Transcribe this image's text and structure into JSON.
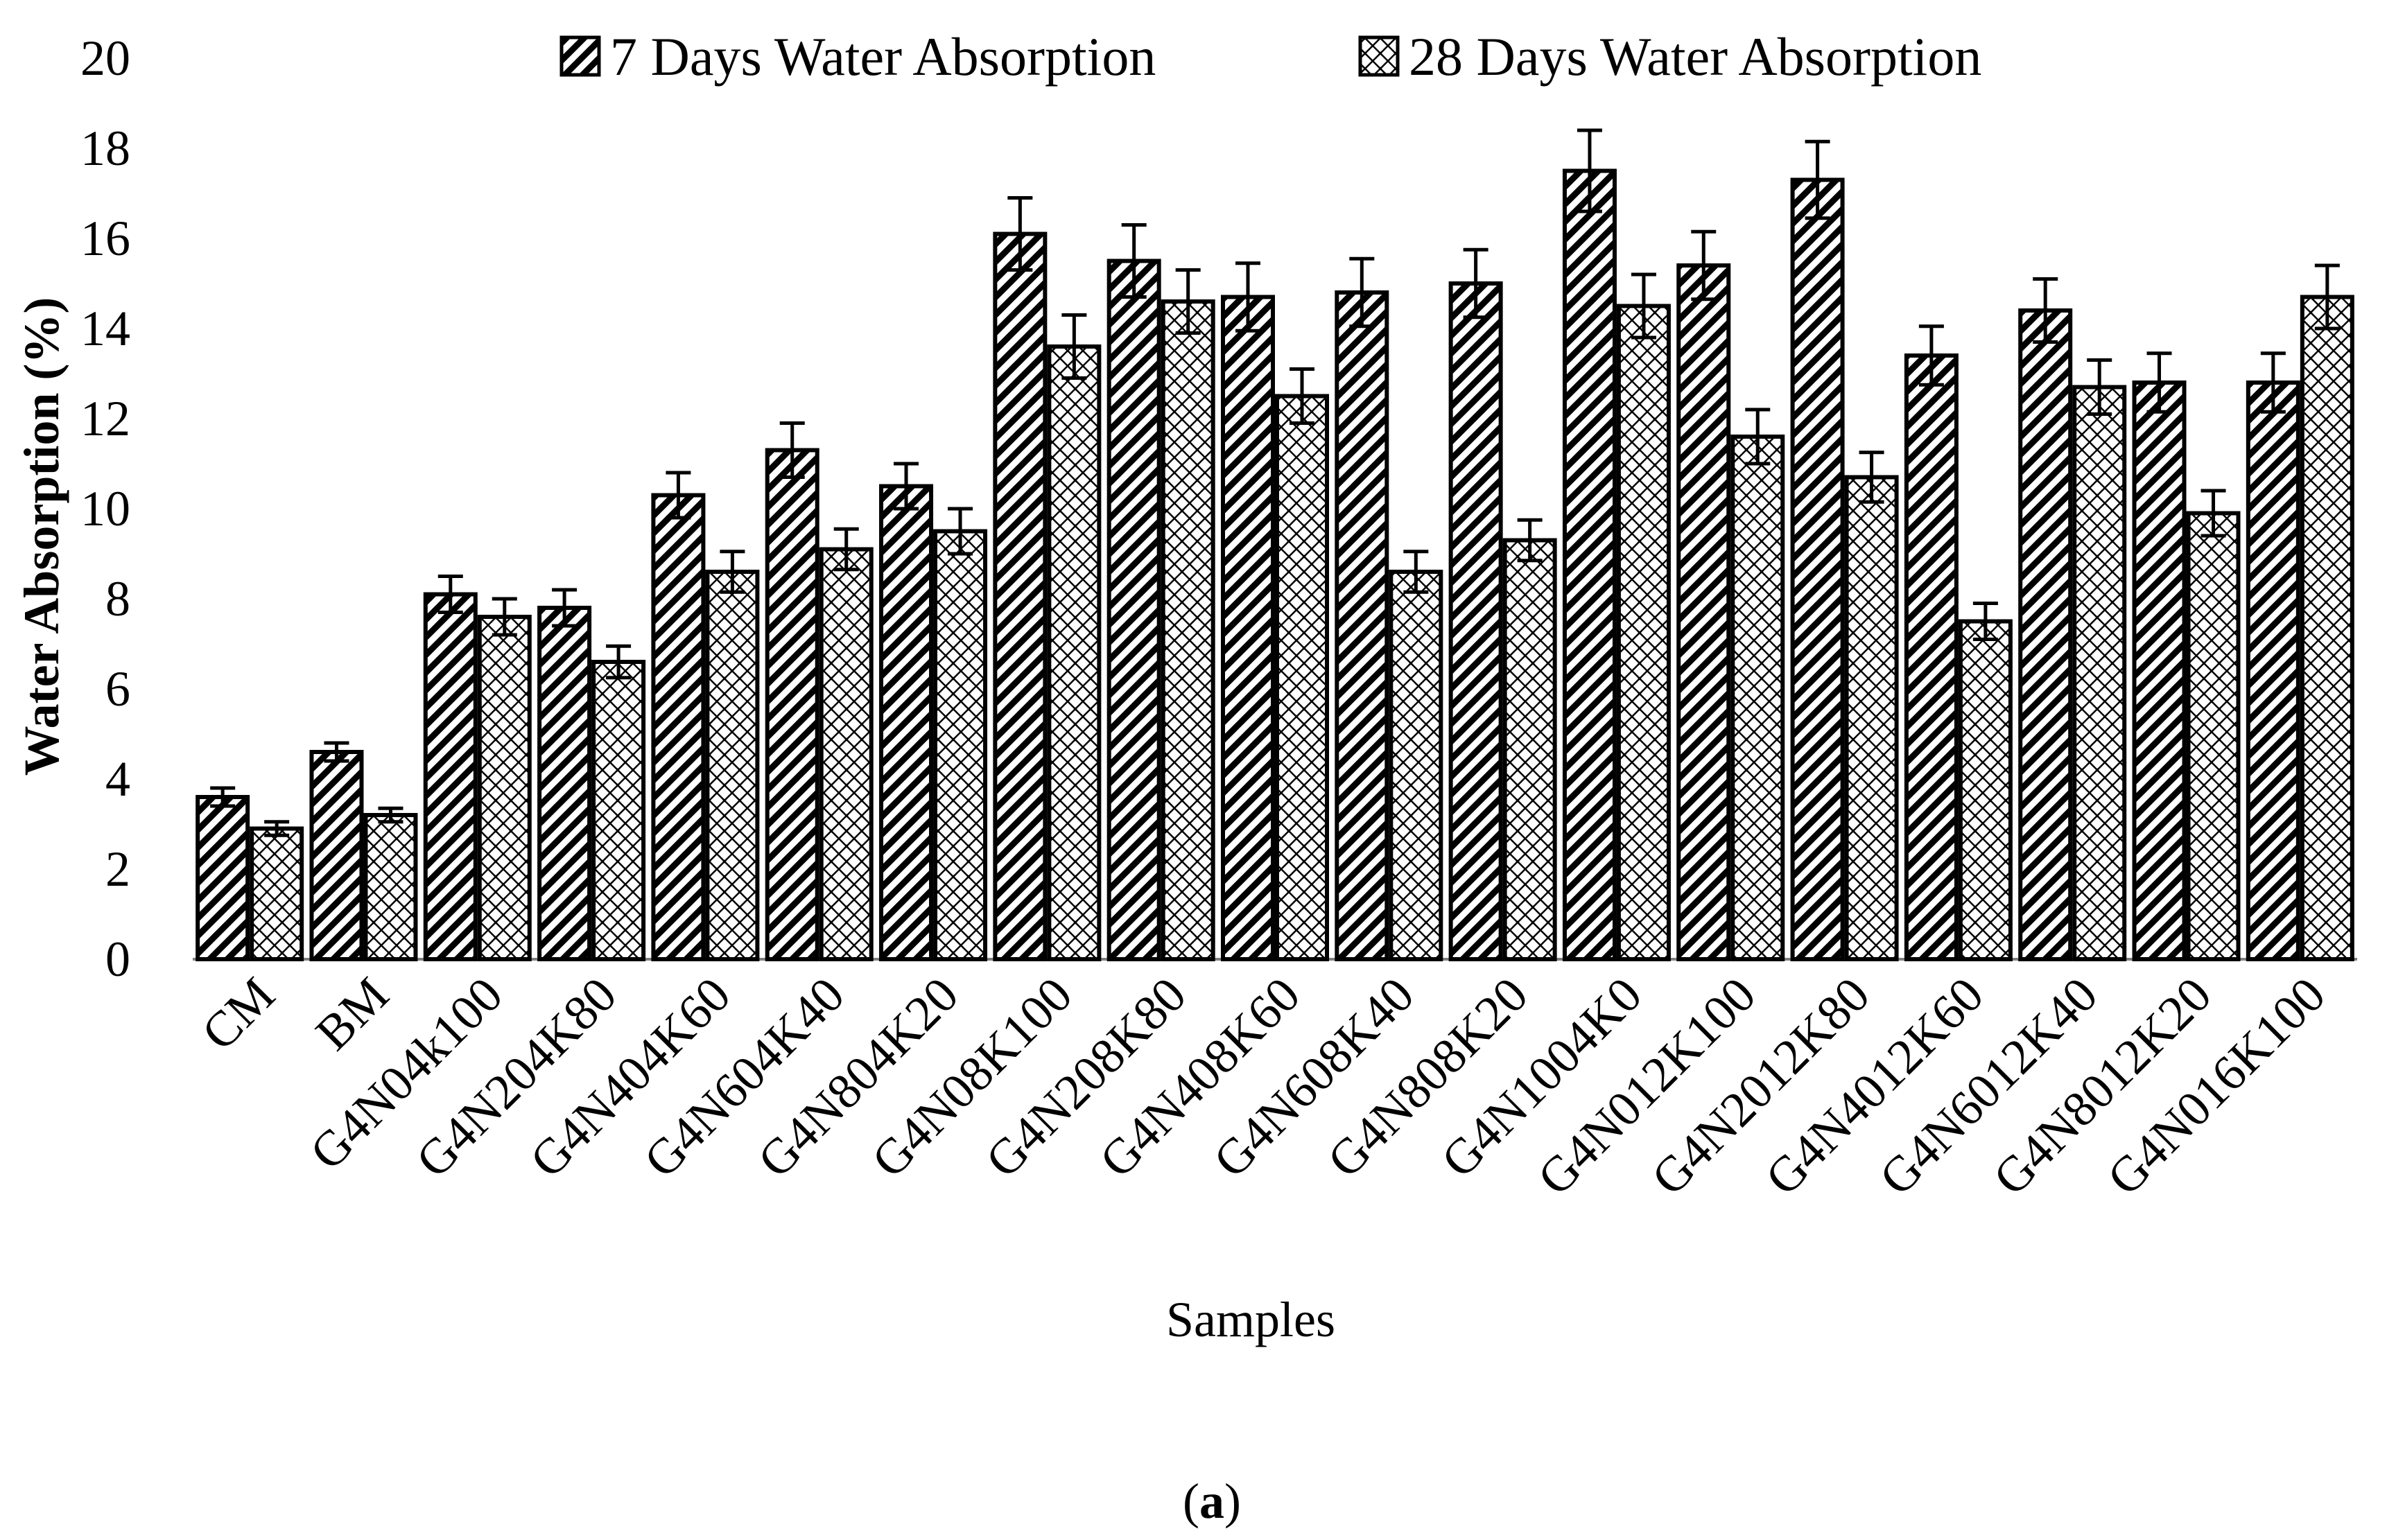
{
  "chart_data": {
    "type": "bar",
    "title": "",
    "xlabel": "Samples",
    "ylabel": "Water Absorption (%)",
    "ylim": [
      0,
      20
    ],
    "yticks": [
      0,
      2,
      4,
      6,
      8,
      10,
      12,
      14,
      16,
      18,
      20
    ],
    "grid": false,
    "legend_position": "top",
    "caption_prefix": "(",
    "caption_letter": "a",
    "caption_suffix": ")",
    "categories": [
      "CM",
      "BM",
      "G4N04k100",
      "G4N204K80",
      "G4N404K60",
      "G4N604K40",
      "G4N804K20",
      "G4N08K100",
      "G4N208K80",
      "G4N408K60",
      "G4N608K40",
      "G4N808K20",
      "G4N1004K0",
      "G4N012K100",
      "G4N2012K80",
      "G4N4012K60",
      "G4N6012K40",
      "G4N8012K20",
      "G4N016K100"
    ],
    "series": [
      {
        "name": "7 Days Water Absorption",
        "pattern": "diagonal-hatch",
        "values": [
          3.6,
          4.6,
          8.1,
          7.8,
          10.3,
          11.3,
          10.5,
          16.1,
          15.5,
          14.7,
          14.8,
          15.0,
          17.5,
          15.4,
          17.3,
          13.4,
          14.4,
          12.8,
          12.8
        ],
        "errors": [
          0.2,
          0.2,
          0.4,
          0.4,
          0.5,
          0.6,
          0.5,
          0.8,
          0.8,
          0.75,
          0.75,
          0.75,
          0.9,
          0.75,
          0.85,
          0.65,
          0.7,
          0.65,
          0.65
        ]
      },
      {
        "name": "28 Days Water Absorption",
        "pattern": "crosshatch-dots",
        "values": [
          2.9,
          3.2,
          7.6,
          6.6,
          8.6,
          9.1,
          9.5,
          13.6,
          14.6,
          12.5,
          8.6,
          9.3,
          14.5,
          11.6,
          10.7,
          7.5,
          12.7,
          9.9,
          14.7
        ],
        "errors": [
          0.15,
          0.15,
          0.4,
          0.35,
          0.45,
          0.45,
          0.5,
          0.7,
          0.7,
          0.6,
          0.45,
          0.45,
          0.7,
          0.6,
          0.55,
          0.4,
          0.6,
          0.5,
          0.7
        ]
      }
    ],
    "colors": {
      "bar_stroke": "#000000",
      "bar_fill": "#ffffff",
      "axis": "#808080",
      "text": "#000000"
    }
  }
}
